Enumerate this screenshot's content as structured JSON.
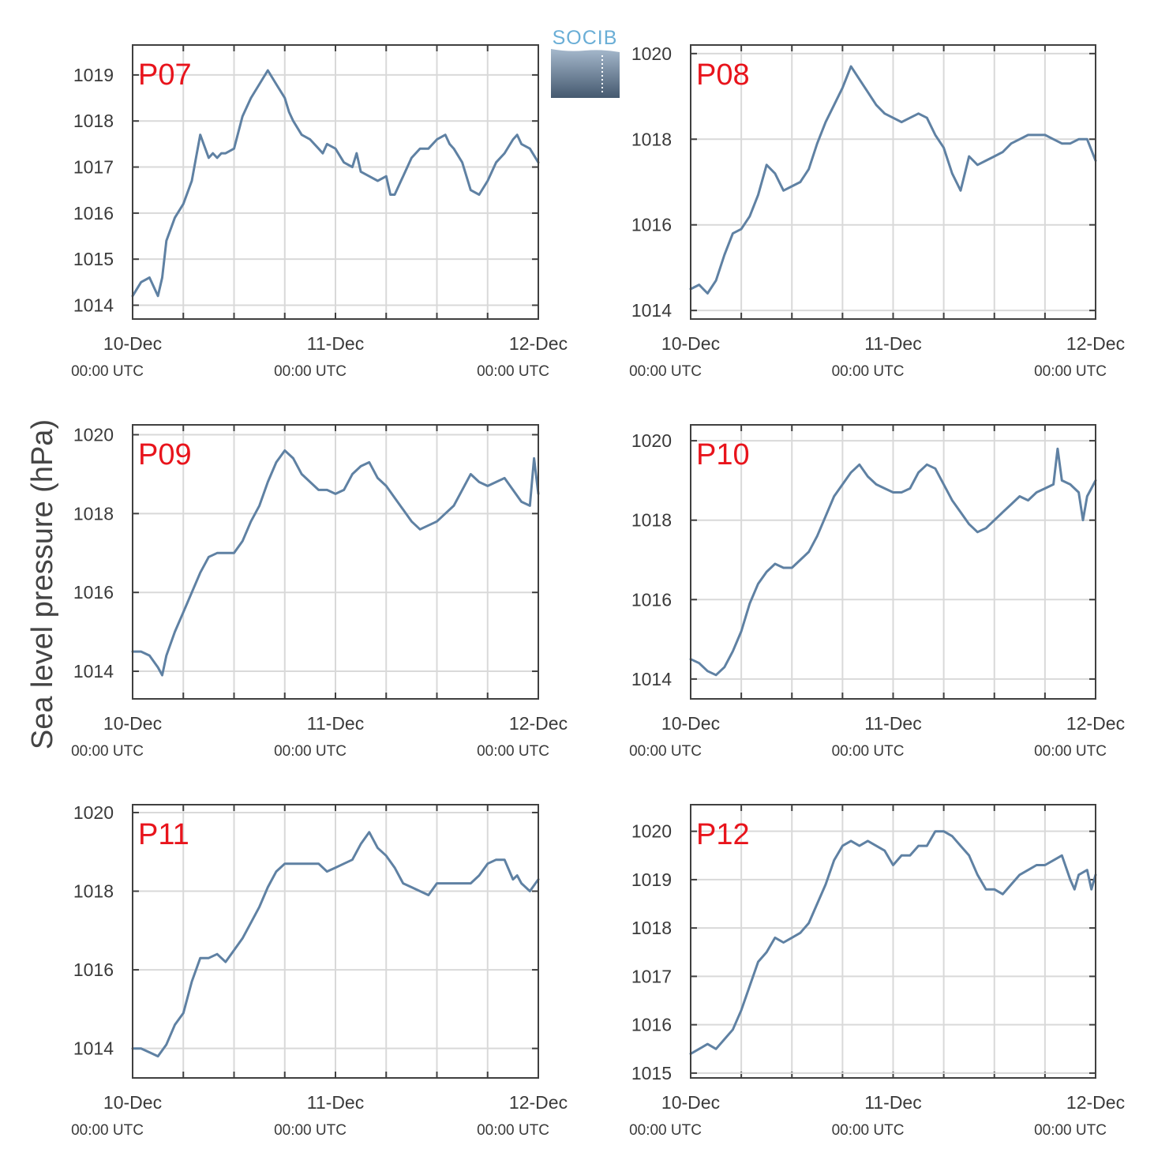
{
  "ylabel": "Sea level pressure (hPa)",
  "logo": {
    "text": "SOCIB"
  },
  "colors": {
    "line": "#5f81a3",
    "label": "#e8141c",
    "grid": "#d9d9d9",
    "frame": "#404040"
  },
  "x_tick_labels": [
    {
      "date": "10-Dec",
      "time": "00:00 UTC"
    },
    {
      "date": "11-Dec",
      "time": "00:00 UTC"
    },
    {
      "date": "12-Dec",
      "time": "00:00 UTC"
    }
  ],
  "chart_data": [
    {
      "type": "line",
      "label": "P07",
      "xlim": [
        0,
        48
      ],
      "ylim": [
        1013.7,
        1019.65
      ],
      "yticks": [
        1014,
        1015,
        1016,
        1017,
        1018,
        1019
      ],
      "x": [
        0,
        1,
        2,
        3,
        3.5,
        4,
        5,
        6,
        7,
        7.5,
        8,
        9,
        9.5,
        10,
        10.5,
        11,
        12,
        13,
        14,
        15,
        16,
        17,
        18,
        18.5,
        19,
        20,
        21,
        22,
        22.5,
        23,
        24,
        25,
        26,
        26.5,
        27,
        28,
        29,
        30,
        30.5,
        31,
        32,
        33,
        34,
        35,
        36,
        37,
        37.5,
        38,
        39,
        40,
        41,
        42,
        43,
        44,
        45,
        45.5,
        46,
        47,
        48
      ],
      "y": [
        1014.2,
        1014.5,
        1014.6,
        1014.2,
        1014.6,
        1015.4,
        1015.9,
        1016.2,
        1016.7,
        1017.2,
        1017.7,
        1017.2,
        1017.3,
        1017.2,
        1017.3,
        1017.3,
        1017.4,
        1018.1,
        1018.5,
        1018.8,
        1019.1,
        1018.8,
        1018.5,
        1018.2,
        1018.0,
        1017.7,
        1017.6,
        1017.4,
        1017.3,
        1017.5,
        1017.4,
        1017.1,
        1017.0,
        1017.3,
        1016.9,
        1016.8,
        1016.7,
        1016.8,
        1016.4,
        1016.4,
        1016.8,
        1017.2,
        1017.4,
        1017.4,
        1017.6,
        1017.7,
        1017.5,
        1017.4,
        1017.1,
        1016.5,
        1016.4,
        1016.7,
        1017.1,
        1017.3,
        1017.6,
        1017.7,
        1017.5,
        1017.4,
        1017.1
      ]
    },
    {
      "type": "line",
      "label": "P08",
      "xlim": [
        0,
        48
      ],
      "ylim": [
        1013.8,
        1020.2
      ],
      "yticks": [
        1014,
        1016,
        1018,
        1020
      ],
      "x": [
        0,
        1,
        2,
        3,
        4,
        5,
        6,
        7,
        8,
        9,
        10,
        11,
        12,
        13,
        14,
        15,
        16,
        17,
        18,
        19,
        20,
        21,
        22,
        23,
        24,
        25,
        26,
        27,
        28,
        29,
        30,
        31,
        32,
        33,
        34,
        35,
        36,
        37,
        38,
        39,
        40,
        41,
        42,
        43,
        44,
        45,
        46,
        47,
        48
      ],
      "y": [
        1014.5,
        1014.6,
        1014.4,
        1014.7,
        1015.3,
        1015.8,
        1015.9,
        1016.2,
        1016.7,
        1017.4,
        1017.2,
        1016.8,
        1016.9,
        1017.0,
        1017.3,
        1017.9,
        1018.4,
        1018.8,
        1019.2,
        1019.7,
        1019.4,
        1019.1,
        1018.8,
        1018.6,
        1018.5,
        1018.4,
        1018.5,
        1018.6,
        1018.5,
        1018.1,
        1017.8,
        1017.2,
        1016.8,
        1017.6,
        1017.4,
        1017.5,
        1017.6,
        1017.7,
        1017.9,
        1018.0,
        1018.1,
        1018.1,
        1018.1,
        1018.0,
        1017.9,
        1017.9,
        1018.0,
        1018.0,
        1017.5
      ]
    },
    {
      "type": "line",
      "label": "P09",
      "xlim": [
        0,
        48
      ],
      "ylim": [
        1013.3,
        1020.25
      ],
      "yticks": [
        1014,
        1016,
        1018,
        1020
      ],
      "x": [
        0,
        1,
        2,
        3,
        3.5,
        4,
        5,
        6,
        7,
        8,
        9,
        10,
        11,
        12,
        13,
        14,
        15,
        16,
        17,
        18,
        19,
        20,
        21,
        22,
        23,
        24,
        25,
        26,
        27,
        28,
        29,
        30,
        31,
        32,
        33,
        34,
        35,
        36,
        37,
        38,
        39,
        40,
        41,
        42,
        43,
        44,
        45,
        46,
        47,
        47.5,
        48
      ],
      "y": [
        1014.5,
        1014.5,
        1014.4,
        1014.1,
        1013.9,
        1014.4,
        1015.0,
        1015.5,
        1016.0,
        1016.5,
        1016.9,
        1017.0,
        1017.0,
        1017.0,
        1017.3,
        1017.8,
        1018.2,
        1018.8,
        1019.3,
        1019.6,
        1019.4,
        1019.0,
        1018.8,
        1018.6,
        1018.6,
        1018.5,
        1018.6,
        1019.0,
        1019.2,
        1019.3,
        1018.9,
        1018.7,
        1018.4,
        1018.1,
        1017.8,
        1017.6,
        1017.7,
        1017.8,
        1018.0,
        1018.2,
        1018.6,
        1019.0,
        1018.8,
        1018.7,
        1018.8,
        1018.9,
        1018.6,
        1018.3,
        1018.2,
        1019.4,
        1018.5
      ]
    },
    {
      "type": "line",
      "label": "P10",
      "xlim": [
        0,
        48
      ],
      "ylim": [
        1013.5,
        1020.4
      ],
      "yticks": [
        1014,
        1016,
        1018,
        1020
      ],
      "x": [
        0,
        1,
        2,
        3,
        4,
        5,
        6,
        7,
        8,
        9,
        10,
        11,
        12,
        13,
        14,
        15,
        16,
        17,
        18,
        19,
        20,
        21,
        22,
        23,
        24,
        25,
        26,
        27,
        28,
        29,
        30,
        31,
        32,
        33,
        34,
        35,
        36,
        37,
        38,
        39,
        40,
        41,
        42,
        43,
        43.5,
        44,
        45,
        46,
        46.5,
        47,
        48
      ],
      "y": [
        1014.5,
        1014.4,
        1014.2,
        1014.1,
        1014.3,
        1014.7,
        1015.2,
        1015.9,
        1016.4,
        1016.7,
        1016.9,
        1016.8,
        1016.8,
        1017.0,
        1017.2,
        1017.6,
        1018.1,
        1018.6,
        1018.9,
        1019.2,
        1019.4,
        1019.1,
        1018.9,
        1018.8,
        1018.7,
        1018.7,
        1018.8,
        1019.2,
        1019.4,
        1019.3,
        1018.9,
        1018.5,
        1018.2,
        1017.9,
        1017.7,
        1017.8,
        1018.0,
        1018.2,
        1018.4,
        1018.6,
        1018.5,
        1018.7,
        1018.8,
        1018.9,
        1019.8,
        1019.0,
        1018.9,
        1018.7,
        1018.0,
        1018.6,
        1019.0
      ]
    },
    {
      "type": "line",
      "label": "P11",
      "xlim": [
        0,
        48
      ],
      "ylim": [
        1013.25,
        1020.2
      ],
      "yticks": [
        1014,
        1016,
        1018,
        1020
      ],
      "x": [
        0,
        1,
        2,
        3,
        4,
        5,
        6,
        7,
        8,
        9,
        10,
        11,
        12,
        13,
        14,
        15,
        16,
        17,
        18,
        19,
        20,
        21,
        22,
        23,
        24,
        25,
        26,
        27,
        28,
        29,
        30,
        31,
        32,
        33,
        34,
        35,
        36,
        37,
        38,
        39,
        40,
        41,
        42,
        43,
        44,
        45,
        45.5,
        46,
        47,
        48
      ],
      "y": [
        1014.0,
        1014.0,
        1013.9,
        1013.8,
        1014.1,
        1014.6,
        1014.9,
        1015.7,
        1016.3,
        1016.3,
        1016.4,
        1016.2,
        1016.5,
        1016.8,
        1017.2,
        1017.6,
        1018.1,
        1018.5,
        1018.7,
        1018.7,
        1018.7,
        1018.7,
        1018.7,
        1018.5,
        1018.6,
        1018.7,
        1018.8,
        1019.2,
        1019.5,
        1019.1,
        1018.9,
        1018.6,
        1018.2,
        1018.1,
        1018.0,
        1017.9,
        1018.2,
        1018.2,
        1018.2,
        1018.2,
        1018.2,
        1018.4,
        1018.7,
        1018.8,
        1018.8,
        1018.3,
        1018.4,
        1018.2,
        1018.0,
        1018.3
      ]
    },
    {
      "type": "line",
      "label": "P12",
      "xlim": [
        0,
        48
      ],
      "ylim": [
        1014.9,
        1020.55
      ],
      "yticks": [
        1015,
        1016,
        1017,
        1018,
        1019,
        1020
      ],
      "x": [
        0,
        1,
        2,
        3,
        4,
        5,
        6,
        7,
        8,
        9,
        10,
        11,
        12,
        13,
        14,
        15,
        16,
        17,
        18,
        19,
        20,
        21,
        22,
        23,
        24,
        25,
        26,
        27,
        28,
        29,
        30,
        31,
        32,
        33,
        34,
        35,
        36,
        37,
        38,
        39,
        40,
        41,
        42,
        43,
        44,
        45,
        45.5,
        46,
        47,
        47.5,
        48
      ],
      "y": [
        1015.4,
        1015.5,
        1015.6,
        1015.5,
        1015.7,
        1015.9,
        1016.3,
        1016.8,
        1017.3,
        1017.5,
        1017.8,
        1017.7,
        1017.8,
        1017.9,
        1018.1,
        1018.5,
        1018.9,
        1019.4,
        1019.7,
        1019.8,
        1019.7,
        1019.8,
        1019.7,
        1019.6,
        1019.3,
        1019.5,
        1019.5,
        1019.7,
        1019.7,
        1020.0,
        1020.0,
        1019.9,
        1019.7,
        1019.5,
        1019.1,
        1018.8,
        1018.8,
        1018.7,
        1018.9,
        1019.1,
        1019.2,
        1019.3,
        1019.3,
        1019.4,
        1019.5,
        1019.0,
        1018.8,
        1019.1,
        1019.2,
        1018.8,
        1019.1
      ]
    }
  ]
}
